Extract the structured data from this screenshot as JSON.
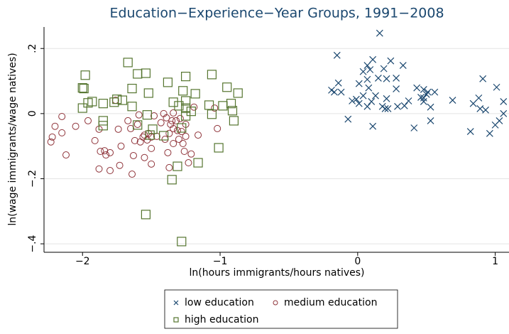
{
  "chart_data": {
    "type": "scatter",
    "title": "Education−Experience−Year Groups, 1991−2008",
    "x_label": "ln(hours immigrants/hours natives)",
    "y_label": "ln(wage immigrants/wage natives)",
    "xlim": [
      -2.28,
      1.1
    ],
    "ylim": [
      -0.426,
      0.266
    ],
    "xticks": [
      {
        "value": -2,
        "label": "−2"
      },
      {
        "value": -1,
        "label": "−1"
      },
      0,
      1
    ],
    "yticks": [
      {
        "value": -0.4,
        "label": "−.4"
      },
      {
        "value": -0.2,
        "label": "−.2"
      },
      0,
      {
        "value": 0.2,
        "label": ".2"
      }
    ],
    "grid": true,
    "legend": "bottom",
    "series": [
      {
        "name": "low education",
        "color": "#1a476f",
        "marker": "x",
        "x": [
          0.16,
          -0.15,
          0.11,
          0.24,
          0.07,
          0.33,
          0.04,
          0.09,
          0.19,
          0.15,
          0.21,
          0.28,
          0.07,
          0.91,
          0.01,
          -0.14,
          -0.19,
          -0.17,
          -0.12,
          0.28,
          0.43,
          0.08,
          0.13,
          0.04,
          -0.01,
          -0.04,
          0.01,
          0.21,
          0.48,
          0.5,
          0.51,
          0.56,
          0.46,
          0.1,
          0.18,
          0.22,
          0.2,
          0.29,
          0.34,
          0.53,
          0.69,
          0.84,
          0.88,
          1.01,
          1.06,
          0.48,
          0.48,
          0.93,
          0.89,
          1.06,
          -0.07,
          0.11,
          0.41,
          0.53,
          0.82,
          0.96,
          1.0,
          1.03,
          0.07,
          0.37
        ],
        "values": [
          0.247,
          0.179,
          0.166,
          0.162,
          0.148,
          0.148,
          0.129,
          0.135,
          0.138,
          0.109,
          0.107,
          0.109,
          0.105,
          0.107,
          0.092,
          0.094,
          0.072,
          0.066,
          0.066,
          0.076,
          0.079,
          0.079,
          0.055,
          0.055,
          0.044,
          0.039,
          0.031,
          0.046,
          0.074,
          0.059,
          0.066,
          0.066,
          0.05,
          0.037,
          0.022,
          0.015,
          0.015,
          0.022,
          0.024,
          0.02,
          0.041,
          0.031,
          0.048,
          0.081,
          0.037,
          0.048,
          0.037,
          0.011,
          0.015,
          0,
          -0.017,
          -0.039,
          -0.044,
          -0.022,
          -0.055,
          -0.061,
          -0.035,
          -0.022,
          0.022,
          0.039
        ]
      },
      {
        "name": "medium education",
        "color": "#90353b",
        "marker": "circle",
        "x": [
          -2.23,
          -2.22,
          -2.2,
          -2.15,
          -2.15,
          -2.12,
          -2.05,
          -1.96,
          -1.91,
          -1.88,
          -1.88,
          -1.84,
          -1.83,
          -1.8,
          -1.8,
          -1.87,
          -1.76,
          -1.74,
          -1.73,
          -1.72,
          -1.67,
          -1.65,
          -1.64,
          -1.63,
          -1.62,
          -1.6,
          -1.59,
          -1.58,
          -1.56,
          -1.55,
          -1.55,
          -1.53,
          -1.52,
          -1.5,
          -1.5,
          -1.5,
          -1.48,
          -1.46,
          -1.43,
          -1.41,
          -1.4,
          -1.39,
          -1.37,
          -1.38,
          -1.37,
          -1.36,
          -1.35,
          -1.34,
          -1.34,
          -1.34,
          -1.32,
          -1.31,
          -1.3,
          -1.29,
          -1.28,
          -1.27,
          -1.26,
          -1.25,
          -1.25,
          -1.23,
          -1.21,
          -1.19,
          -1.16,
          -1.02,
          -1.04
        ],
        "values": [
          -0.087,
          -0.072,
          -0.039,
          -0.009,
          -0.059,
          -0.127,
          -0.039,
          -0.022,
          -0.083,
          -0.048,
          -0.17,
          -0.114,
          -0.127,
          -0.175,
          -0.12,
          -0.116,
          0.041,
          -0.048,
          -0.159,
          -0.1,
          -0.022,
          -0.046,
          -0.186,
          -0.129,
          -0.083,
          -0.033,
          -0.004,
          -0.087,
          -0.072,
          -0.135,
          -0.066,
          -0.081,
          -0.061,
          -0.107,
          -0.155,
          -0.072,
          -0.007,
          -0.07,
          -0.028,
          0,
          -0.079,
          -0.013,
          -0.166,
          -0.12,
          -0.061,
          -0.033,
          -0.022,
          -0.092,
          -0.046,
          0.002,
          -0.022,
          -0.052,
          -0.079,
          -0.015,
          -0.055,
          -0.092,
          -0.116,
          -0.033,
          -0.07,
          -0.151,
          -0.124,
          0.02,
          -0.066,
          -0.046,
          0.017
        ]
      },
      {
        "name": "high education",
        "color": "#55752f",
        "marker": "square",
        "x": [
          -1.67,
          -1.6,
          -1.54,
          -1.25,
          -1.06,
          -1.98,
          -2.0,
          -1.99,
          -1.96,
          -1.93,
          -1.85,
          -1.77,
          -1.71,
          -1.64,
          -1.52,
          -1.38,
          -1.18,
          -0.95,
          -0.87,
          -2.0,
          -1.85,
          -1.85,
          -1.75,
          -1.64,
          -1.53,
          -1.49,
          -1.51,
          -1.6,
          -1.34,
          -1.3,
          -1.25,
          -1.27,
          -1.25,
          -1.21,
          -1.25,
          -1.28,
          -1.08,
          -1.06,
          -0.98,
          -0.92,
          -0.91,
          -0.9,
          -1.16,
          -1.01,
          -1.35,
          -1.31,
          -1.54,
          -1.28,
          -1.41
        ],
        "values": [
          0.157,
          0.122,
          0.124,
          0.114,
          0.12,
          0.118,
          0.079,
          0.077,
          0.033,
          0.037,
          0.031,
          0.035,
          0.041,
          0.077,
          0.063,
          0.096,
          0.061,
          0.081,
          0.063,
          0.017,
          -0.022,
          -0.037,
          0.044,
          0.022,
          -0.004,
          -0.048,
          -0.066,
          -0.035,
          0.035,
          0.024,
          0.017,
          0.07,
          0.039,
          0.007,
          -0.007,
          -0.044,
          0.026,
          -0.002,
          0.024,
          0.031,
          0.009,
          -0.022,
          -0.151,
          -0.105,
          -0.203,
          -0.162,
          -0.31,
          -0.393,
          -0.068
        ]
      }
    ]
  }
}
